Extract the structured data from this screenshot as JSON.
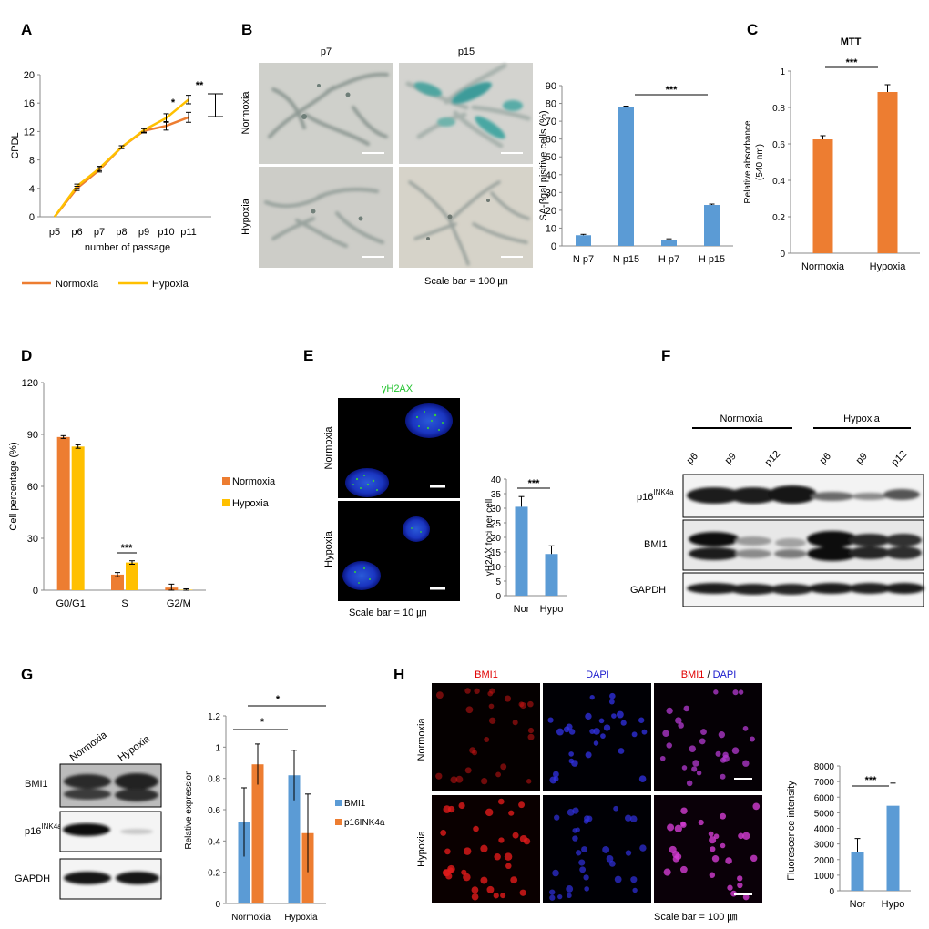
{
  "panel_labels": [
    "A",
    "B",
    "C",
    "D",
    "E",
    "F",
    "G",
    "H"
  ],
  "colors": {
    "normoxia": "#ed7d31",
    "hypoxia": "#ffc000",
    "blue": "#5b9bd5",
    "bmi1_red": "#e00000",
    "dapi_blue": "#1a1acd",
    "gfp_green": "#22c32e"
  },
  "panel_b": {
    "col_labels": [
      "p7",
      "p15"
    ],
    "row_labels": [
      "Normoxia",
      "Hypoxia"
    ],
    "scale_bar": "Scale bar = 100 ㎛"
  },
  "panel_e": {
    "stain": "γH2AX",
    "row_labels": [
      "Normoxia",
      "Hypoxia"
    ],
    "scale_bar": "Scale bar = 10 ㎛"
  },
  "panel_f": {
    "group_labels": [
      "Normoxia",
      "Hypoxia"
    ],
    "lane_labels": [
      "p6",
      "p9",
      "p12",
      "p6",
      "p9",
      "p12"
    ],
    "p16_base": "p16",
    "p16_sup": "INK4a",
    "bmi1": "BMI1",
    "gapdh": "GAPDH"
  },
  "panel_g": {
    "lane_labels": [
      "Normoxia",
      "Hypoxia"
    ],
    "bmi1": "BMI1",
    "p16_base": "p16",
    "p16_sup": "INK4a",
    "gapdh": "GAPDH"
  },
  "panel_h": {
    "channels": [
      "BMI1",
      "DAPI"
    ],
    "merge_sep": " / ",
    "row_labels": [
      "Normoxia",
      "Hypoxia"
    ],
    "scale_bar": "Scale bar = 100 ㎛"
  },
  "chart_data": [
    {
      "panel": "A",
      "type": "line",
      "x": [
        "p5",
        "p6",
        "p7",
        "p8",
        "p9",
        "p10",
        "p11"
      ],
      "xlabel": "number of passage",
      "ylabel": "CPDL",
      "ylim": [
        0,
        20
      ],
      "yticks": [
        0,
        4,
        8,
        12,
        16,
        20
      ],
      "series": [
        {
          "name": "Normoxia",
          "values": [
            0,
            4.0,
            6.6,
            9.8,
            12.1,
            12.8,
            14.0
          ],
          "err": [
            0,
            0.3,
            0.3,
            0.2,
            0.3,
            0.6,
            0.7
          ]
        },
        {
          "name": "Hypoxia",
          "values": [
            0,
            4.3,
            6.8,
            9.8,
            12.2,
            13.9,
            16.5
          ],
          "err": [
            0,
            0.3,
            0.3,
            0.2,
            0.3,
            0.6,
            0.6
          ]
        }
      ],
      "annotations": [
        "*",
        "**"
      ],
      "legend_position": "bottom"
    },
    {
      "panel": "B",
      "type": "bar",
      "categories": [
        "N p7",
        "N p15",
        "H p7",
        "H p15"
      ],
      "values": [
        6,
        78,
        3.5,
        23
      ],
      "err": [
        0.5,
        0.5,
        0.5,
        0.5
      ],
      "ylabel": "SA-βgal pisitive cells (%)",
      "ylim": [
        0,
        90
      ],
      "yticks": [
        0,
        10,
        20,
        30,
        40,
        50,
        60,
        70,
        80,
        90
      ],
      "annotations": [
        "***"
      ]
    },
    {
      "panel": "C",
      "type": "bar",
      "title": "MTT",
      "categories": [
        "Normoxia",
        "Hypoxia"
      ],
      "values": [
        0.625,
        0.885
      ],
      "err": [
        0.02,
        0.04
      ],
      "ylabel": [
        "Relative absorbance",
        "(540 nm)"
      ],
      "ylim": [
        0,
        1
      ],
      "yticks": [
        "0",
        "0.2",
        "0.4",
        "0.6",
        "0.8",
        "1"
      ],
      "annotations": [
        "***"
      ]
    },
    {
      "panel": "D",
      "type": "bar",
      "categories": [
        "G0/G1",
        "S",
        "G2/M"
      ],
      "series": [
        {
          "name": "Normoxia",
          "values": [
            88.5,
            9,
            1.5
          ],
          "err": [
            0.8,
            1.2,
            2
          ]
        },
        {
          "name": "Hypoxia",
          "values": [
            83,
            16,
            0.3
          ],
          "err": [
            1,
            1,
            0.5
          ]
        }
      ],
      "ylabel": "Cell percentage (%)",
      "ylim": [
        0,
        120
      ],
      "yticks": [
        0,
        30,
        60,
        90,
        120
      ],
      "annotations": [
        "***"
      ],
      "legend_position": "right"
    },
    {
      "panel": "E",
      "type": "bar",
      "categories": [
        "Nor",
        "Hypo"
      ],
      "values": [
        30.5,
        14.3
      ],
      "err": [
        3.5,
        2.8
      ],
      "ylabel": "γH2AX foci per cell",
      "ylim": [
        0,
        40
      ],
      "yticks": [
        0,
        5,
        10,
        15,
        20,
        25,
        30,
        35,
        40
      ],
      "annotations": [
        "***"
      ]
    },
    {
      "panel": "G",
      "type": "bar",
      "categories": [
        "Normoxia",
        "Hypoxia"
      ],
      "series": [
        {
          "name": "BMI1",
          "values": [
            0.52,
            0.82
          ],
          "err": [
            0.22,
            0.16
          ]
        },
        {
          "name": "p16INK4a",
          "values": [
            0.89,
            0.45
          ],
          "err": [
            0.13,
            0.25
          ]
        }
      ],
      "ylabel": "Relative expression",
      "ylim": [
        0,
        1.2
      ],
      "yticks": [
        "0",
        "0.2",
        "0.4",
        "0.6",
        "0.8",
        "1",
        "1.2"
      ],
      "annotations": [
        "*",
        "*"
      ],
      "legend_position": "right"
    },
    {
      "panel": "H",
      "type": "bar",
      "categories": [
        "Nor",
        "Hypo"
      ],
      "values": [
        2500,
        5450
      ],
      "err": [
        850,
        1450
      ],
      "ylabel": "Fluorescence intensity",
      "ylim": [
        0,
        8000
      ],
      "yticks": [
        0,
        1000,
        2000,
        3000,
        4000,
        5000,
        6000,
        7000,
        8000
      ],
      "annotations": [
        "***"
      ]
    }
  ]
}
